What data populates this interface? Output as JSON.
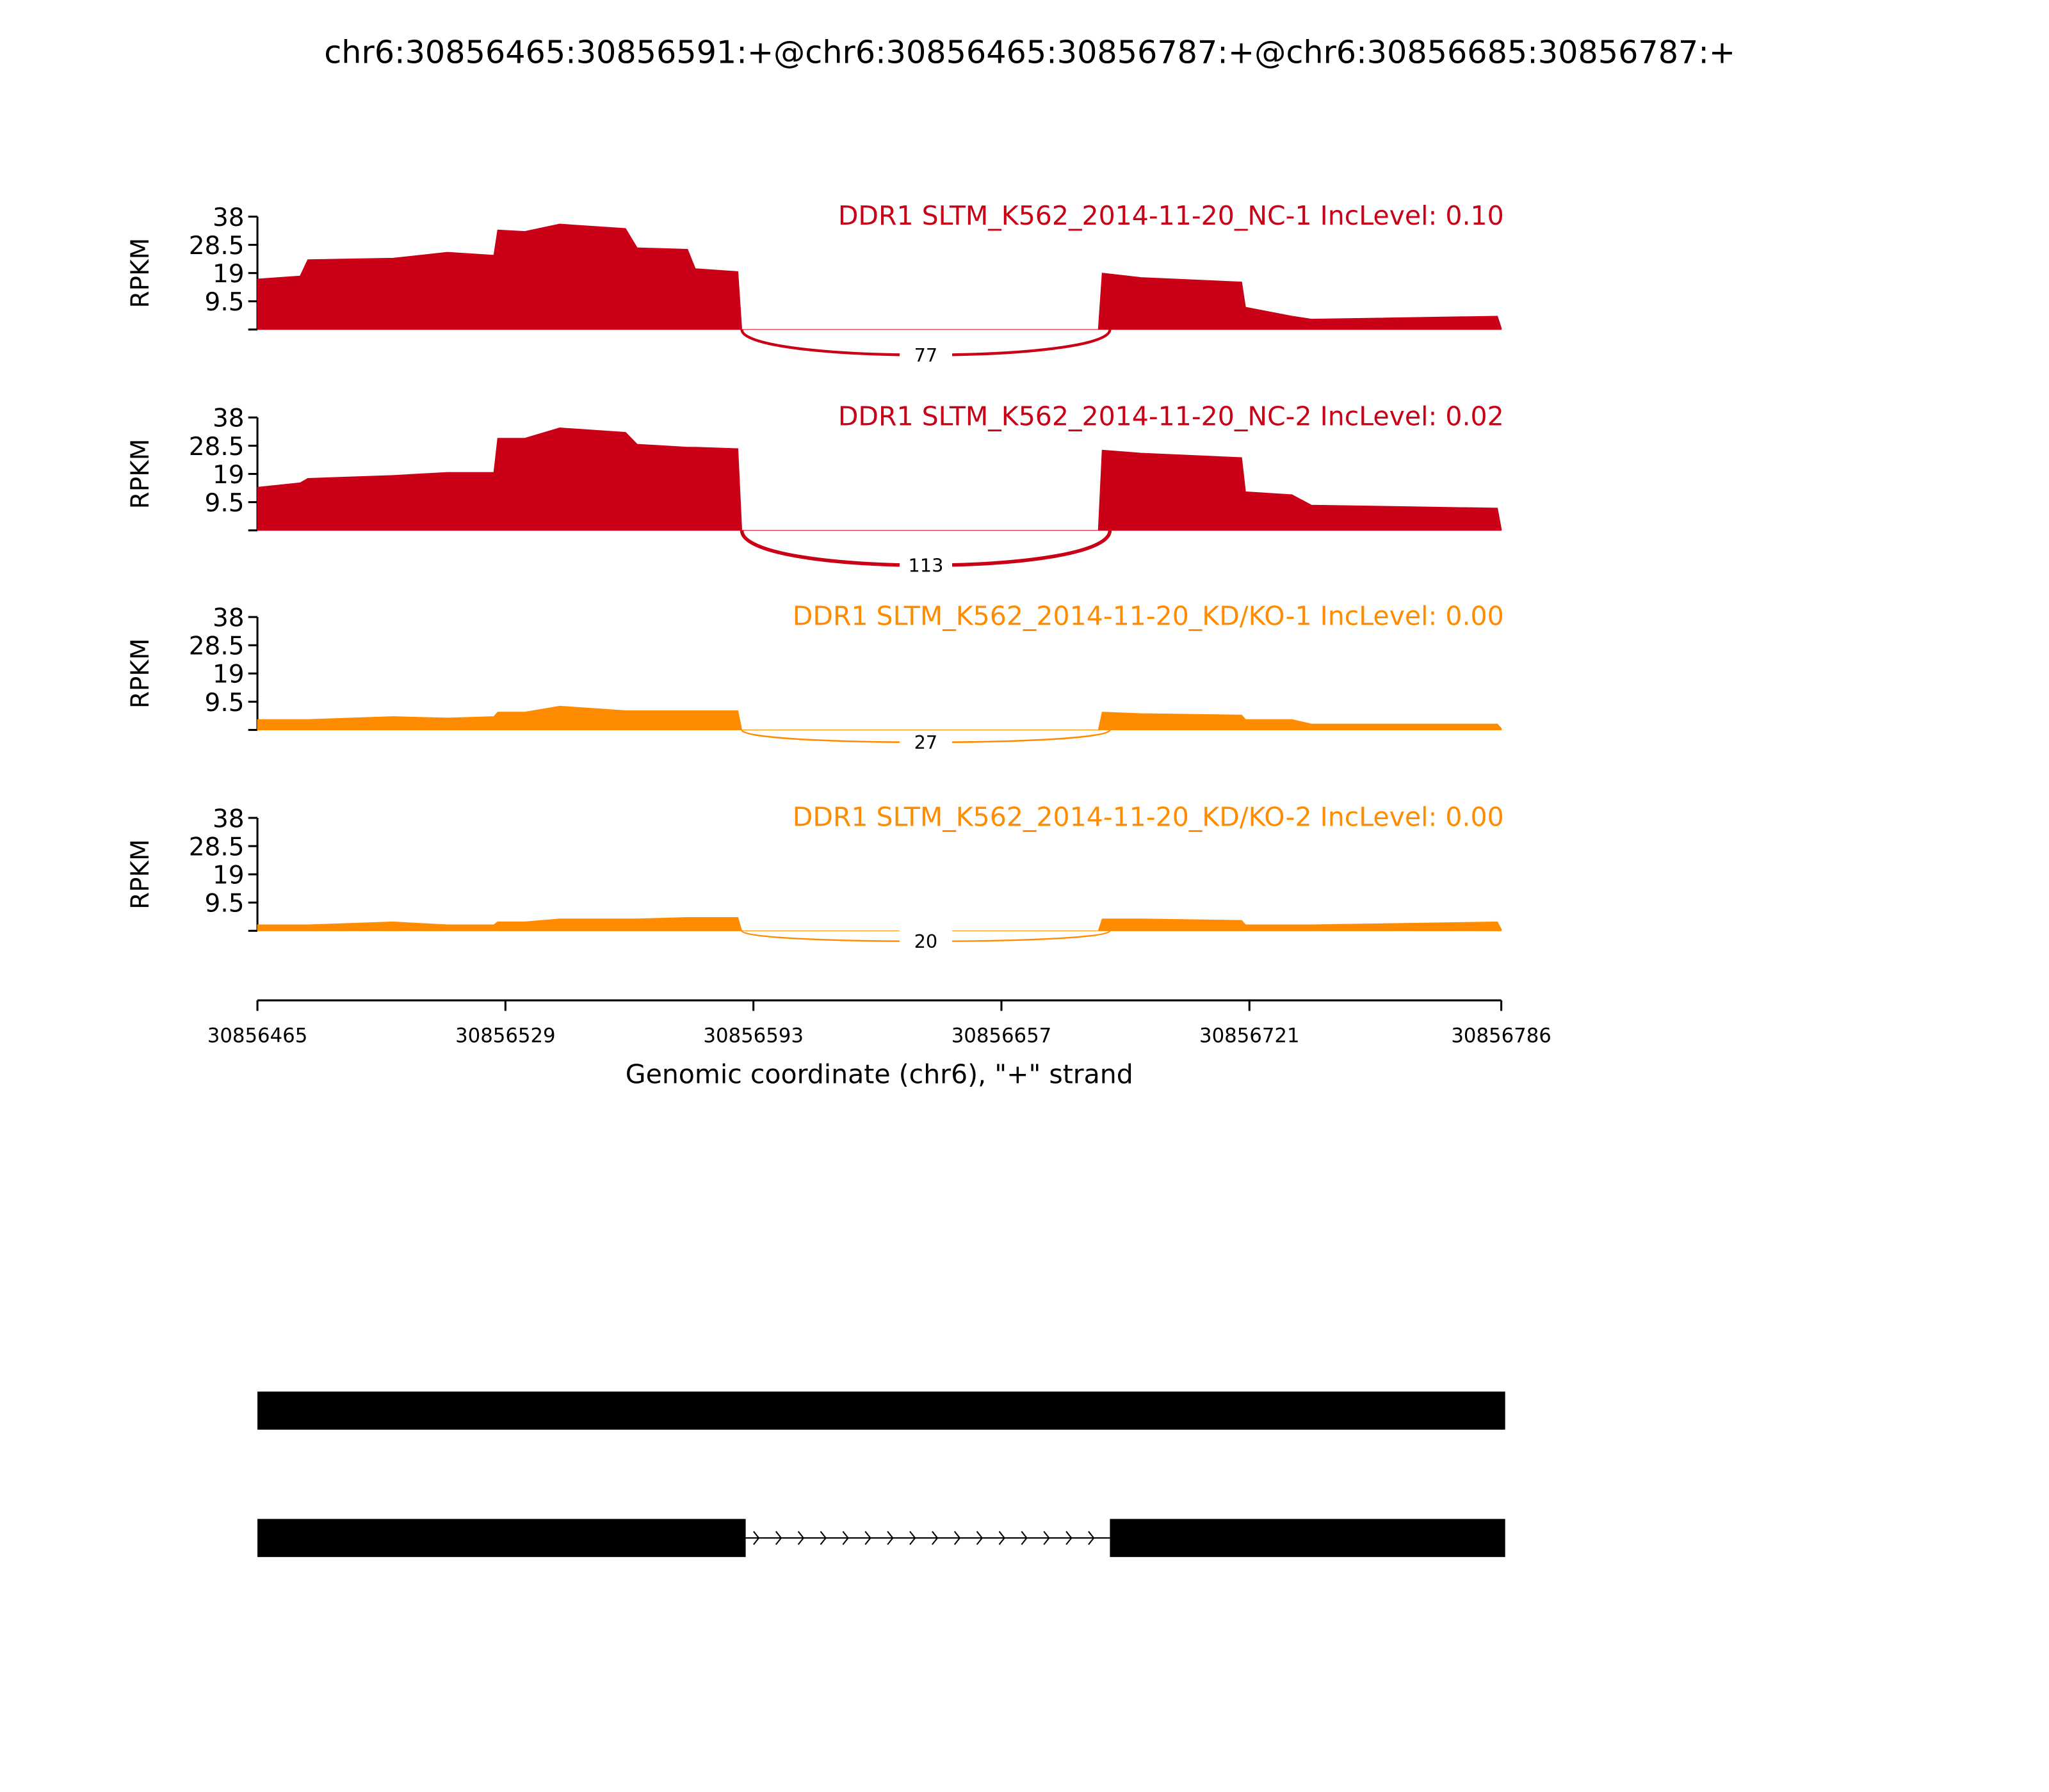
{
  "title": "chr6:30856465:30856591:+@chr6:30856465:30856787:+@chr6:30856685:30856787:+",
  "x_axis": {
    "xlim": [
      30856465,
      30856786
    ],
    "xticks": [
      30856465,
      30856529,
      30856593,
      30856657,
      30856721,
      30856786
    ],
    "xlabel": "Genomic coordinate (chr6), \"+\" strand"
  },
  "chart_data": [
    {
      "type": "area",
      "title": "DDR1 SLTM_K562_2014-11-20_NC-1 IncLevel: 0.10",
      "color": "#c90016",
      "ylabel": "RPKM",
      "ylim": [
        0,
        38
      ],
      "yticks": [
        9.5,
        19,
        28.5,
        38
      ],
      "x": [
        30856465,
        30856476,
        30856478,
        30856500,
        30856514,
        30856526,
        30856527,
        30856534,
        30856543,
        30856560,
        30856563,
        30856576,
        30856578,
        30856589,
        30856590,
        30856682,
        30856683,
        30856693,
        30856719,
        30856720,
        30856732,
        30856737,
        30856785,
        30856786
      ],
      "values": [
        17,
        18,
        23.5,
        24,
        26,
        25,
        33.5,
        33,
        35.5,
        34,
        27.5,
        27,
        20.5,
        19.5,
        0,
        0,
        19,
        17.5,
        16,
        7.5,
        4.5,
        3.5,
        4.5,
        0.5
      ],
      "junctions": [
        {
          "start": 30856590,
          "end": 30856685,
          "count": 77
        }
      ]
    },
    {
      "type": "area",
      "title": "DDR1 SLTM_K562_2014-11-20_NC-2 IncLevel: 0.02",
      "color": "#c90016",
      "ylabel": "RPKM",
      "ylim": [
        0,
        38
      ],
      "yticks": [
        9.5,
        19,
        28.5,
        38
      ],
      "x": [
        30856465,
        30856476,
        30856478,
        30856500,
        30856514,
        30856526,
        30856527,
        30856534,
        30856543,
        30856560,
        30856563,
        30856576,
        30856578,
        30856589,
        30856590,
        30856682,
        30856683,
        30856693,
        30856719,
        30856720,
        30856732,
        30856737,
        30856785,
        30856786
      ],
      "values": [
        14.5,
        16,
        17.5,
        18.5,
        19.5,
        19.5,
        31,
        31,
        34.5,
        33,
        29,
        28,
        28,
        27.5,
        0,
        0,
        27,
        26,
        24.5,
        13,
        12,
        8.5,
        7.5,
        0.5
      ],
      "junctions": [
        {
          "start": 30856590,
          "end": 30856685,
          "count": 113
        }
      ]
    },
    {
      "type": "area",
      "title": "DDR1 SLTM_K562_2014-11-20_KD/KO-1 IncLevel: 0.00",
      "color": "#ff8c00",
      "ylabel": "RPKM",
      "ylim": [
        0,
        38
      ],
      "yticks": [
        9.5,
        19,
        28.5,
        38
      ],
      "x": [
        30856465,
        30856476,
        30856478,
        30856500,
        30856514,
        30856526,
        30856527,
        30856534,
        30856543,
        30856560,
        30856563,
        30856576,
        30856578,
        30856589,
        30856590,
        30856682,
        30856683,
        30856693,
        30856719,
        30856720,
        30856732,
        30856737,
        30856785,
        30856786
      ],
      "values": [
        3.5,
        3.5,
        3.5,
        4.5,
        4,
        4.5,
        6,
        6,
        8,
        6.5,
        6.5,
        6.5,
        6.5,
        6.5,
        0,
        0,
        6,
        5.5,
        5,
        3.5,
        3.5,
        2,
        2,
        0.5
      ],
      "junctions": [
        {
          "start": 30856590,
          "end": 30856685,
          "count": 27
        }
      ]
    },
    {
      "type": "area",
      "title": "DDR1 SLTM_K562_2014-11-20_KD/KO-2 IncLevel: 0.00",
      "color": "#ff8c00",
      "ylabel": "RPKM",
      "ylim": [
        0,
        38
      ],
      "yticks": [
        9.5,
        19,
        28.5,
        38
      ],
      "x": [
        30856465,
        30856476,
        30856478,
        30856500,
        30856514,
        30856526,
        30856527,
        30856534,
        30856543,
        30856560,
        30856563,
        30856576,
        30856578,
        30856589,
        30856590,
        30856682,
        30856683,
        30856693,
        30856719,
        30856720,
        30856732,
        30856737,
        30856785,
        30856786
      ],
      "values": [
        2,
        2,
        2,
        3,
        2,
        2,
        3,
        3,
        4,
        4,
        4,
        4.5,
        4.5,
        4.5,
        0,
        0,
        4,
        4,
        3.5,
        2,
        2,
        2,
        3,
        0.5
      ],
      "junctions": [
        {
          "start": 30856590,
          "end": 30856685,
          "count": 20
        }
      ]
    }
  ],
  "transcripts": [
    {
      "exons": [
        [
          30856465,
          30856787
        ]
      ]
    },
    {
      "exons": [
        [
          30856465,
          30856591
        ],
        [
          30856685,
          30856787
        ]
      ]
    }
  ]
}
